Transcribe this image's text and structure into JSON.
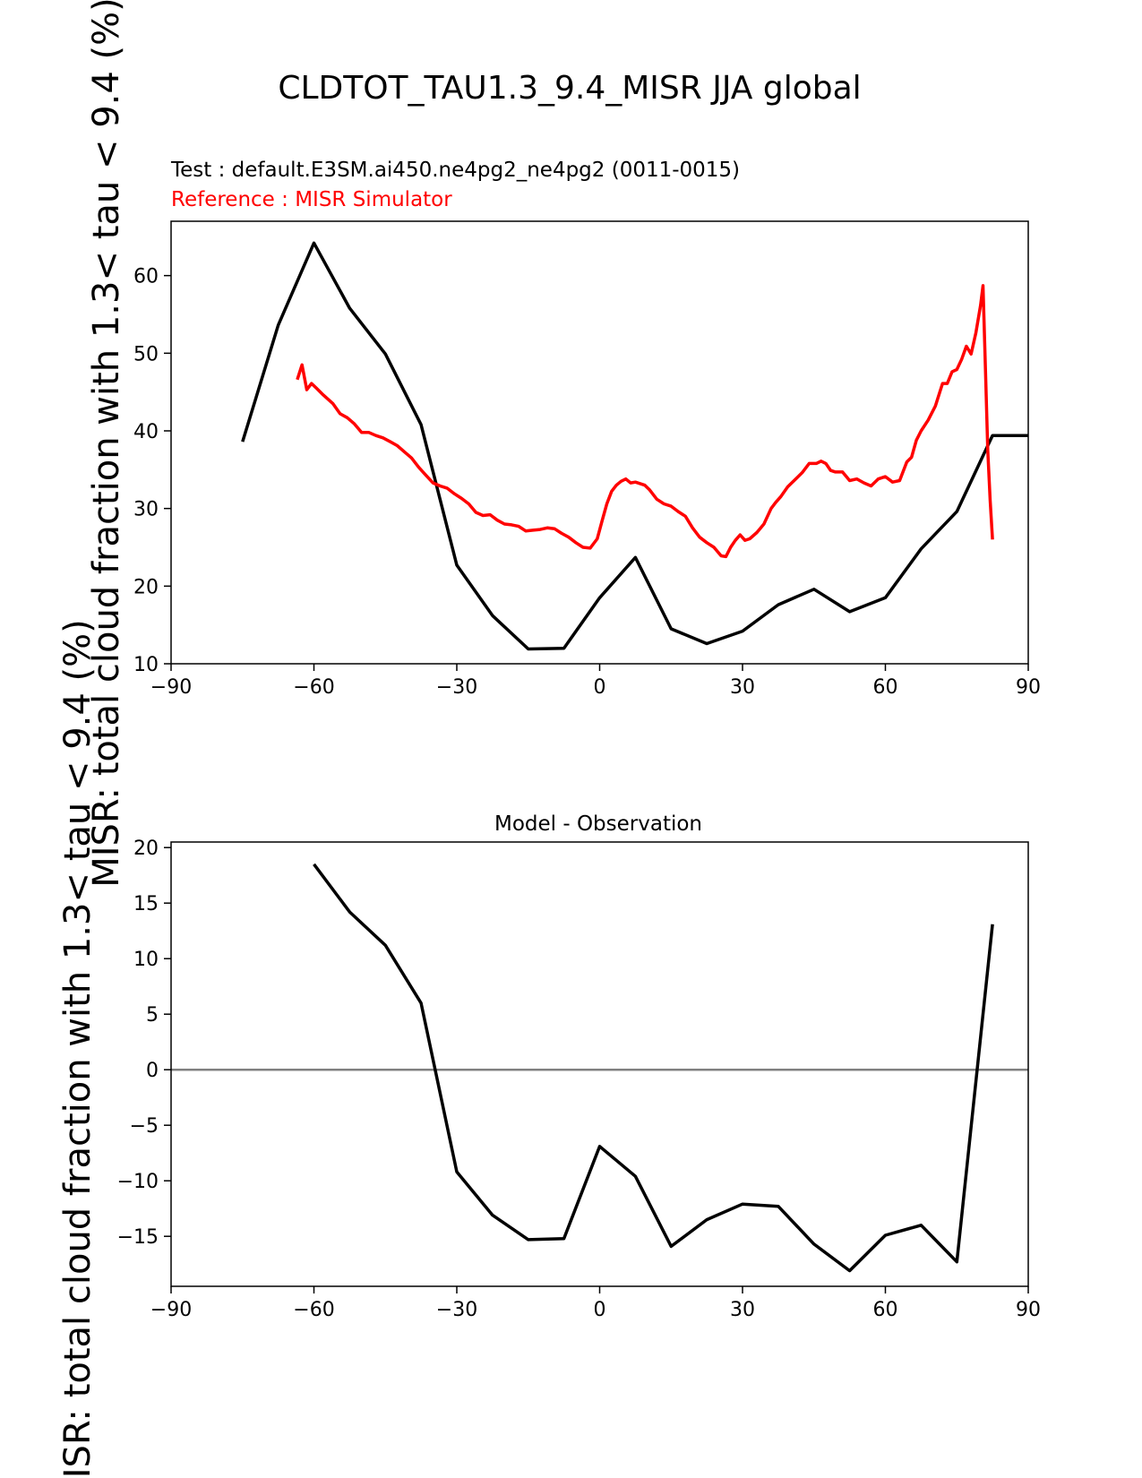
{
  "figure": {
    "title": "CLDTOT_TAU1.3_9.4_MISR JJA global",
    "test_label": "Test : default.E3SM.ai450.ne4pg2_ne4pg2 (0011-0015)",
    "reference_label": "Reference : MISR Simulator"
  },
  "chart_data": [
    {
      "type": "line",
      "title": "",
      "xlabel": "",
      "ylabel": "MISR: total cloud fraction with 1.3< tau < 9.4 (%)",
      "xlim": [
        -90,
        90
      ],
      "ylim": [
        10,
        67
      ],
      "xticks": [
        -90,
        -60,
        -30,
        0,
        30,
        60,
        90
      ],
      "yticks": [
        10,
        20,
        30,
        40,
        50,
        60
      ],
      "xtick_labels": [
        "−90",
        "−60",
        "−30",
        "0",
        "30",
        "60",
        "90"
      ],
      "ytick_labels": [
        "10",
        "20",
        "30",
        "40",
        "50",
        "60"
      ],
      "grid": false,
      "series": [
        {
          "name": "",
          "color": "#000000",
          "x": [
            -75,
            -67.5,
            -60,
            -52.5,
            -45,
            -37.5,
            -30,
            -22.5,
            -15,
            -7.5,
            0,
            7.5,
            15,
            22.5,
            30,
            37.5,
            45,
            52.5,
            60,
            67.5,
            75,
            82.5,
            90
          ],
          "y": [
            38.6,
            53.6,
            64.2,
            55.8,
            49.9,
            40.8,
            22.7,
            16.2,
            11.9,
            12.0,
            18.5,
            23.7,
            14.5,
            12.6,
            14.2,
            17.6,
            19.6,
            16.7,
            18.5,
            24.8,
            29.6,
            39.4,
            39.4
          ]
        },
        {
          "name": "",
          "color": "#ff0000",
          "x": [
            -63.5,
            -62.5,
            -61.5,
            -60.5,
            -59.5,
            -58,
            -56,
            -54.5,
            -53,
            -51.5,
            -50,
            -48.5,
            -47,
            -45.5,
            -44,
            -42.5,
            -41,
            -39.5,
            -38,
            -36.5,
            -35,
            -33.5,
            -32,
            -30.5,
            -29,
            -27.5,
            -26,
            -24.5,
            -23,
            -21.5,
            -20,
            -18.5,
            -17,
            -15.5,
            -14,
            -12.5,
            -11,
            -9.5,
            -8,
            -6.5,
            -5,
            -3.5,
            -2,
            -0.5,
            0.5,
            1.5,
            2.5,
            3.5,
            4.5,
            5.5,
            6.5,
            7.5,
            8.5,
            9.5,
            10.5,
            12,
            13.5,
            15,
            16.5,
            18,
            19.5,
            21,
            22.5,
            24,
            25.5,
            26.5,
            27.5,
            28.5,
            29.5,
            30.5,
            31.5,
            33,
            34.5,
            36,
            37,
            38,
            39.5,
            41,
            42.5,
            44,
            45.5,
            46.5,
            47.5,
            48.5,
            49.5,
            51,
            52.5,
            54,
            55.5,
            57,
            58.5,
            60,
            61.5,
            63,
            64.5,
            65.5,
            66.5,
            67.5,
            69,
            70.5,
            72,
            73,
            74,
            75,
            76,
            77,
            78,
            79,
            80,
            80.5,
            81,
            81.5,
            82,
            82.5
          ],
          "y": [
            46.6,
            48.5,
            45.3,
            46.1,
            45.5,
            44.6,
            43.5,
            42.2,
            41.7,
            40.9,
            39.8,
            39.8,
            39.4,
            39.1,
            38.6,
            38.1,
            37.3,
            36.5,
            35.3,
            34.3,
            33.3,
            32.9,
            32.6,
            31.9,
            31.3,
            30.6,
            29.5,
            29.1,
            29.2,
            28.5,
            28.0,
            27.9,
            27.7,
            27.1,
            27.2,
            27.3,
            27.5,
            27.4,
            26.8,
            26.3,
            25.6,
            25.0,
            24.9,
            26.1,
            28.4,
            30.6,
            32.2,
            33.0,
            33.5,
            33.8,
            33.3,
            33.4,
            33.2,
            33.0,
            32.4,
            31.2,
            30.6,
            30.3,
            29.6,
            29.0,
            27.5,
            26.3,
            25.6,
            25.0,
            23.9,
            23.8,
            25.0,
            25.9,
            26.6,
            25.9,
            26.1,
            26.9,
            28.0,
            30.0,
            30.8,
            31.5,
            32.8,
            33.7,
            34.6,
            35.8,
            35.8,
            36.1,
            35.8,
            34.9,
            34.7,
            34.7,
            33.6,
            33.8,
            33.3,
            32.9,
            33.8,
            34.1,
            33.4,
            33.6,
            36.0,
            36.6,
            38.8,
            40.0,
            41.4,
            43.2,
            46.1,
            46.1,
            47.6,
            47.9,
            49.2,
            50.9,
            49.9,
            52.6,
            56.2,
            58.7,
            48.0,
            37.5,
            31.0,
            26.0
          ]
        }
      ]
    },
    {
      "type": "line",
      "title": "Model - Observation",
      "xlabel": "",
      "ylabel": "MISR: total cloud fraction with 1.3< tau < 9.4 (%)",
      "xlim": [
        -90,
        90
      ],
      "ylim": [
        -19.5,
        20.5
      ],
      "xticks": [
        -90,
        -60,
        -30,
        0,
        30,
        60,
        90
      ],
      "yticks": [
        -15,
        -10,
        -5,
        0,
        5,
        10,
        15,
        20
      ],
      "xtick_labels": [
        "−90",
        "−60",
        "−30",
        "0",
        "30",
        "60",
        "90"
      ],
      "ytick_labels": [
        "−15",
        "−10",
        "−5",
        "0",
        "5",
        "10",
        "15",
        "20"
      ],
      "grid": false,
      "zero_line_color": "#808080",
      "series": [
        {
          "name": "",
          "color": "#000000",
          "x": [
            -60,
            -52.5,
            -45,
            -37.5,
            -30,
            -22.5,
            -15,
            -7.5,
            0,
            7.5,
            15,
            22.5,
            30,
            37.5,
            45,
            52.5,
            60,
            67.5,
            75,
            82.5
          ],
          "y": [
            18.5,
            14.2,
            11.2,
            6.0,
            -9.2,
            -13.1,
            -15.3,
            -15.2,
            -6.9,
            -9.6,
            -15.9,
            -13.5,
            -12.1,
            -12.3,
            -15.7,
            -18.1,
            -14.9,
            -14.0,
            -17.3,
            13.1
          ]
        }
      ]
    }
  ]
}
